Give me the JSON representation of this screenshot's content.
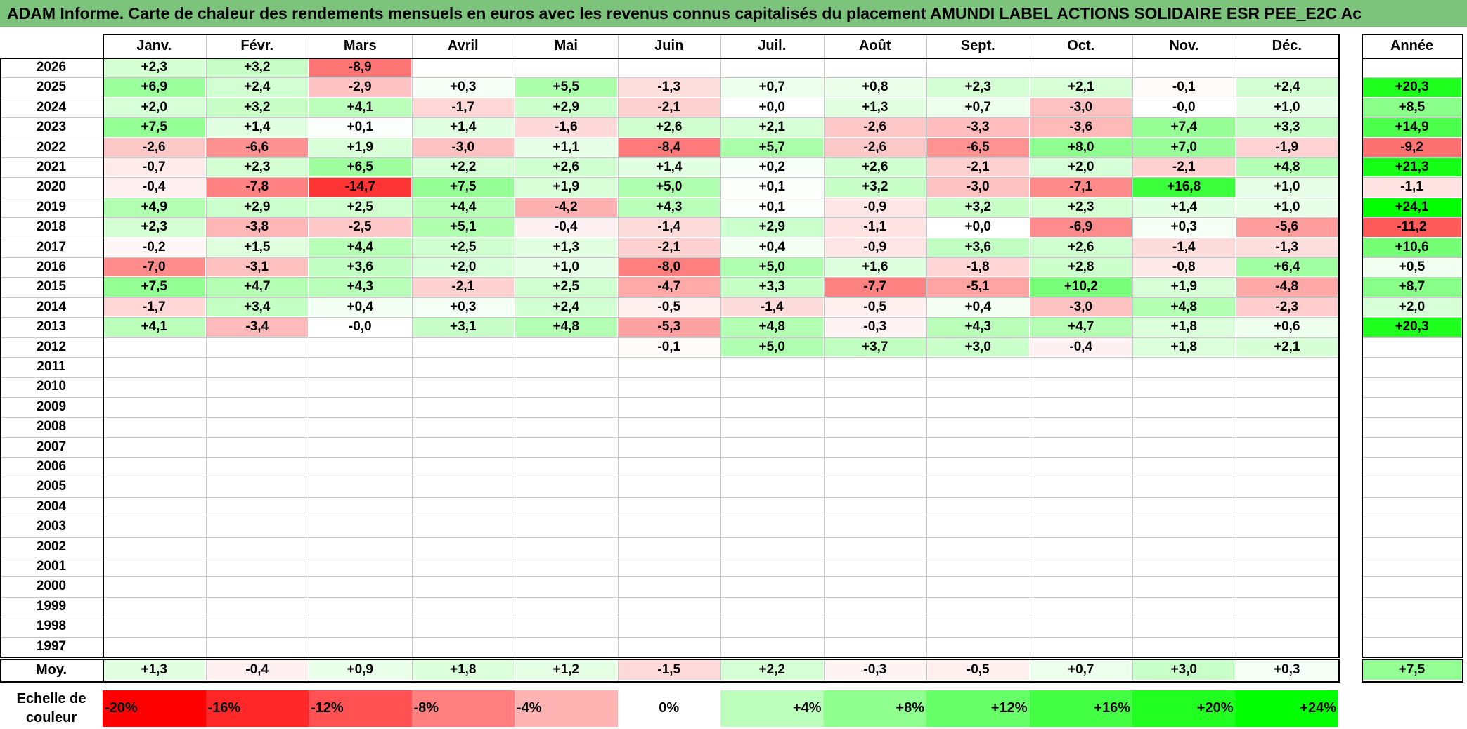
{
  "title": "ADAM Informe. Carte de chaleur des rendements mensuels en euros avec les revenus connus capitalisés du placement AMUNDI LABEL ACTIONS SOLIDAIRE ESR PEE_E2C Ac",
  "colors": {
    "title_bg": "#7cc47c",
    "neg_max": "#ff0000",
    "pos_max": "#00ff00",
    "neutral": "#ffffff"
  },
  "chart_data": {
    "type": "heatmap",
    "columns": [
      "Janv.",
      "Févr.",
      "Mars",
      "Avril",
      "Mai",
      "Juin",
      "Juil.",
      "Août",
      "Sept.",
      "Oct.",
      "Nov.",
      "Déc."
    ],
    "annual_header": "Année",
    "average_label": "Moy.",
    "rows": [
      {
        "year": "2026",
        "months": [
          "+2,3",
          "+3,2",
          "-8,9",
          "",
          "",
          "",
          "",
          "",
          "",
          "",
          "",
          ""
        ],
        "annual": ""
      },
      {
        "year": "2025",
        "months": [
          "+6,9",
          "+2,4",
          "-2,9",
          "+0,3",
          "+5,5",
          "-1,3",
          "+0,7",
          "+0,8",
          "+2,3",
          "+2,1",
          "-0,1",
          "+2,4"
        ],
        "annual": "+20,3"
      },
      {
        "year": "2024",
        "months": [
          "+2,0",
          "+3,2",
          "+4,1",
          "-1,7",
          "+2,9",
          "-2,1",
          "+0,0",
          "+1,3",
          "+0,7",
          "-3,0",
          "-0,0",
          "+1,0"
        ],
        "annual": "+8,5"
      },
      {
        "year": "2023",
        "months": [
          "+7,5",
          "+1,4",
          "+0,1",
          "+1,4",
          "-1,6",
          "+2,6",
          "+2,1",
          "-2,6",
          "-3,3",
          "-3,6",
          "+7,4",
          "+3,3"
        ],
        "annual": "+14,9"
      },
      {
        "year": "2022",
        "months": [
          "-2,6",
          "-6,6",
          "+1,9",
          "-3,0",
          "+1,1",
          "-8,4",
          "+5,7",
          "-2,6",
          "-6,5",
          "+8,0",
          "+7,0",
          "-1,9"
        ],
        "annual": "-9,2"
      },
      {
        "year": "2021",
        "months": [
          "-0,7",
          "+2,3",
          "+6,5",
          "+2,2",
          "+2,6",
          "+1,4",
          "+0,2",
          "+2,6",
          "-2,1",
          "+2,0",
          "-2,1",
          "+4,8"
        ],
        "annual": "+21,3"
      },
      {
        "year": "2020",
        "months": [
          "-0,4",
          "-7,8",
          "-14,7",
          "+7,5",
          "+1,9",
          "+5,0",
          "+0,1",
          "+3,2",
          "-3,0",
          "-7,1",
          "+16,8",
          "+1,0"
        ],
        "annual": "-1,1"
      },
      {
        "year": "2019",
        "months": [
          "+4,9",
          "+2,9",
          "+2,5",
          "+4,4",
          "-4,2",
          "+4,3",
          "+0,1",
          "-0,9",
          "+3,2",
          "+2,3",
          "+1,4",
          "+1,0"
        ],
        "annual": "+24,1"
      },
      {
        "year": "2018",
        "months": [
          "+2,3",
          "-3,8",
          "-2,5",
          "+5,1",
          "-0,4",
          "-1,4",
          "+2,9",
          "-1,1",
          "+0,0",
          "-6,9",
          "+0,3",
          "-5,6"
        ],
        "annual": "-11,2"
      },
      {
        "year": "2017",
        "months": [
          "-0,2",
          "+1,5",
          "+4,4",
          "+2,5",
          "+1,3",
          "-2,1",
          "+0,4",
          "-0,9",
          "+3,6",
          "+2,6",
          "-1,4",
          "-1,3"
        ],
        "annual": "+10,6"
      },
      {
        "year": "2016",
        "months": [
          "-7,0",
          "-3,1",
          "+3,6",
          "+2,0",
          "+1,0",
          "-8,0",
          "+5,0",
          "+1,6",
          "-1,8",
          "+2,8",
          "-0,8",
          "+6,4"
        ],
        "annual": "+0,5"
      },
      {
        "year": "2015",
        "months": [
          "+7,5",
          "+4,7",
          "+4,3",
          "-2,1",
          "+2,5",
          "-4,7",
          "+3,3",
          "-7,7",
          "-5,1",
          "+10,2",
          "+1,9",
          "-4,8"
        ],
        "annual": "+8,7"
      },
      {
        "year": "2014",
        "months": [
          "-1,7",
          "+3,4",
          "+0,4",
          "+0,3",
          "+2,4",
          "-0,5",
          "-1,4",
          "-0,5",
          "+0,4",
          "-3,0",
          "+4,8",
          "-2,3"
        ],
        "annual": "+2,0"
      },
      {
        "year": "2013",
        "months": [
          "+4,1",
          "-3,4",
          "-0,0",
          "+3,1",
          "+4,8",
          "-5,3",
          "+4,8",
          "-0,3",
          "+4,3",
          "+4,7",
          "+1,8",
          "+0,6"
        ],
        "annual": "+20,3"
      },
      {
        "year": "2012",
        "months": [
          "",
          "",
          "",
          "",
          "",
          "-0,1",
          "+5,0",
          "+3,7",
          "+3,0",
          "-0,4",
          "+1,8",
          "+2,1"
        ],
        "annual": ""
      },
      {
        "year": "2011",
        "months": [
          "",
          "",
          "",
          "",
          "",
          "",
          "",
          "",
          "",
          "",
          "",
          ""
        ],
        "annual": ""
      },
      {
        "year": "2010",
        "months": [
          "",
          "",
          "",
          "",
          "",
          "",
          "",
          "",
          "",
          "",
          "",
          ""
        ],
        "annual": ""
      },
      {
        "year": "2009",
        "months": [
          "",
          "",
          "",
          "",
          "",
          "",
          "",
          "",
          "",
          "",
          "",
          ""
        ],
        "annual": ""
      },
      {
        "year": "2008",
        "months": [
          "",
          "",
          "",
          "",
          "",
          "",
          "",
          "",
          "",
          "",
          "",
          ""
        ],
        "annual": ""
      },
      {
        "year": "2007",
        "months": [
          "",
          "",
          "",
          "",
          "",
          "",
          "",
          "",
          "",
          "",
          "",
          ""
        ],
        "annual": ""
      },
      {
        "year": "2006",
        "months": [
          "",
          "",
          "",
          "",
          "",
          "",
          "",
          "",
          "",
          "",
          "",
          ""
        ],
        "annual": ""
      },
      {
        "year": "2005",
        "months": [
          "",
          "",
          "",
          "",
          "",
          "",
          "",
          "",
          "",
          "",
          "",
          ""
        ],
        "annual": ""
      },
      {
        "year": "2004",
        "months": [
          "",
          "",
          "",
          "",
          "",
          "",
          "",
          "",
          "",
          "",
          "",
          ""
        ],
        "annual": ""
      },
      {
        "year": "2003",
        "months": [
          "",
          "",
          "",
          "",
          "",
          "",
          "",
          "",
          "",
          "",
          "",
          ""
        ],
        "annual": ""
      },
      {
        "year": "2002",
        "months": [
          "",
          "",
          "",
          "",
          "",
          "",
          "",
          "",
          "",
          "",
          "",
          ""
        ],
        "annual": ""
      },
      {
        "year": "2001",
        "months": [
          "",
          "",
          "",
          "",
          "",
          "",
          "",
          "",
          "",
          "",
          "",
          ""
        ],
        "annual": ""
      },
      {
        "year": "2000",
        "months": [
          "",
          "",
          "",
          "",
          "",
          "",
          "",
          "",
          "",
          "",
          "",
          ""
        ],
        "annual": ""
      },
      {
        "year": "1999",
        "months": [
          "",
          "",
          "",
          "",
          "",
          "",
          "",
          "",
          "",
          "",
          "",
          ""
        ],
        "annual": ""
      },
      {
        "year": "1998",
        "months": [
          "",
          "",
          "",
          "",
          "",
          "",
          "",
          "",
          "",
          "",
          "",
          ""
        ],
        "annual": ""
      },
      {
        "year": "1997",
        "months": [
          "",
          "",
          "",
          "",
          "",
          "",
          "",
          "",
          "",
          "",
          "",
          ""
        ],
        "annual": ""
      }
    ],
    "average": {
      "months": [
        "+1,3",
        "-0,4",
        "+0,9",
        "+1,8",
        "+1,2",
        "-1,5",
        "+2,2",
        "-0,3",
        "-0,5",
        "+0,7",
        "+3,0",
        "+0,3"
      ],
      "annual": "+7,5"
    },
    "color_scale": {
      "label_lines": [
        "Echelle de",
        "couleur"
      ],
      "steps": [
        {
          "label": "-20%",
          "value": -20
        },
        {
          "label": "-16%",
          "value": -16
        },
        {
          "label": "-12%",
          "value": -12
        },
        {
          "label": "-8%",
          "value": -8
        },
        {
          "label": "-4%",
          "value": -4
        },
        {
          "label": "0%",
          "value": 0
        },
        {
          "label": "+4%",
          "value": 4
        },
        {
          "label": "+8%",
          "value": 8
        },
        {
          "label": "+12%",
          "value": 12
        },
        {
          "label": "+16%",
          "value": 16
        },
        {
          "label": "+20%",
          "value": 20
        },
        {
          "label": "+24%",
          "value": 24
        }
      ]
    }
  }
}
